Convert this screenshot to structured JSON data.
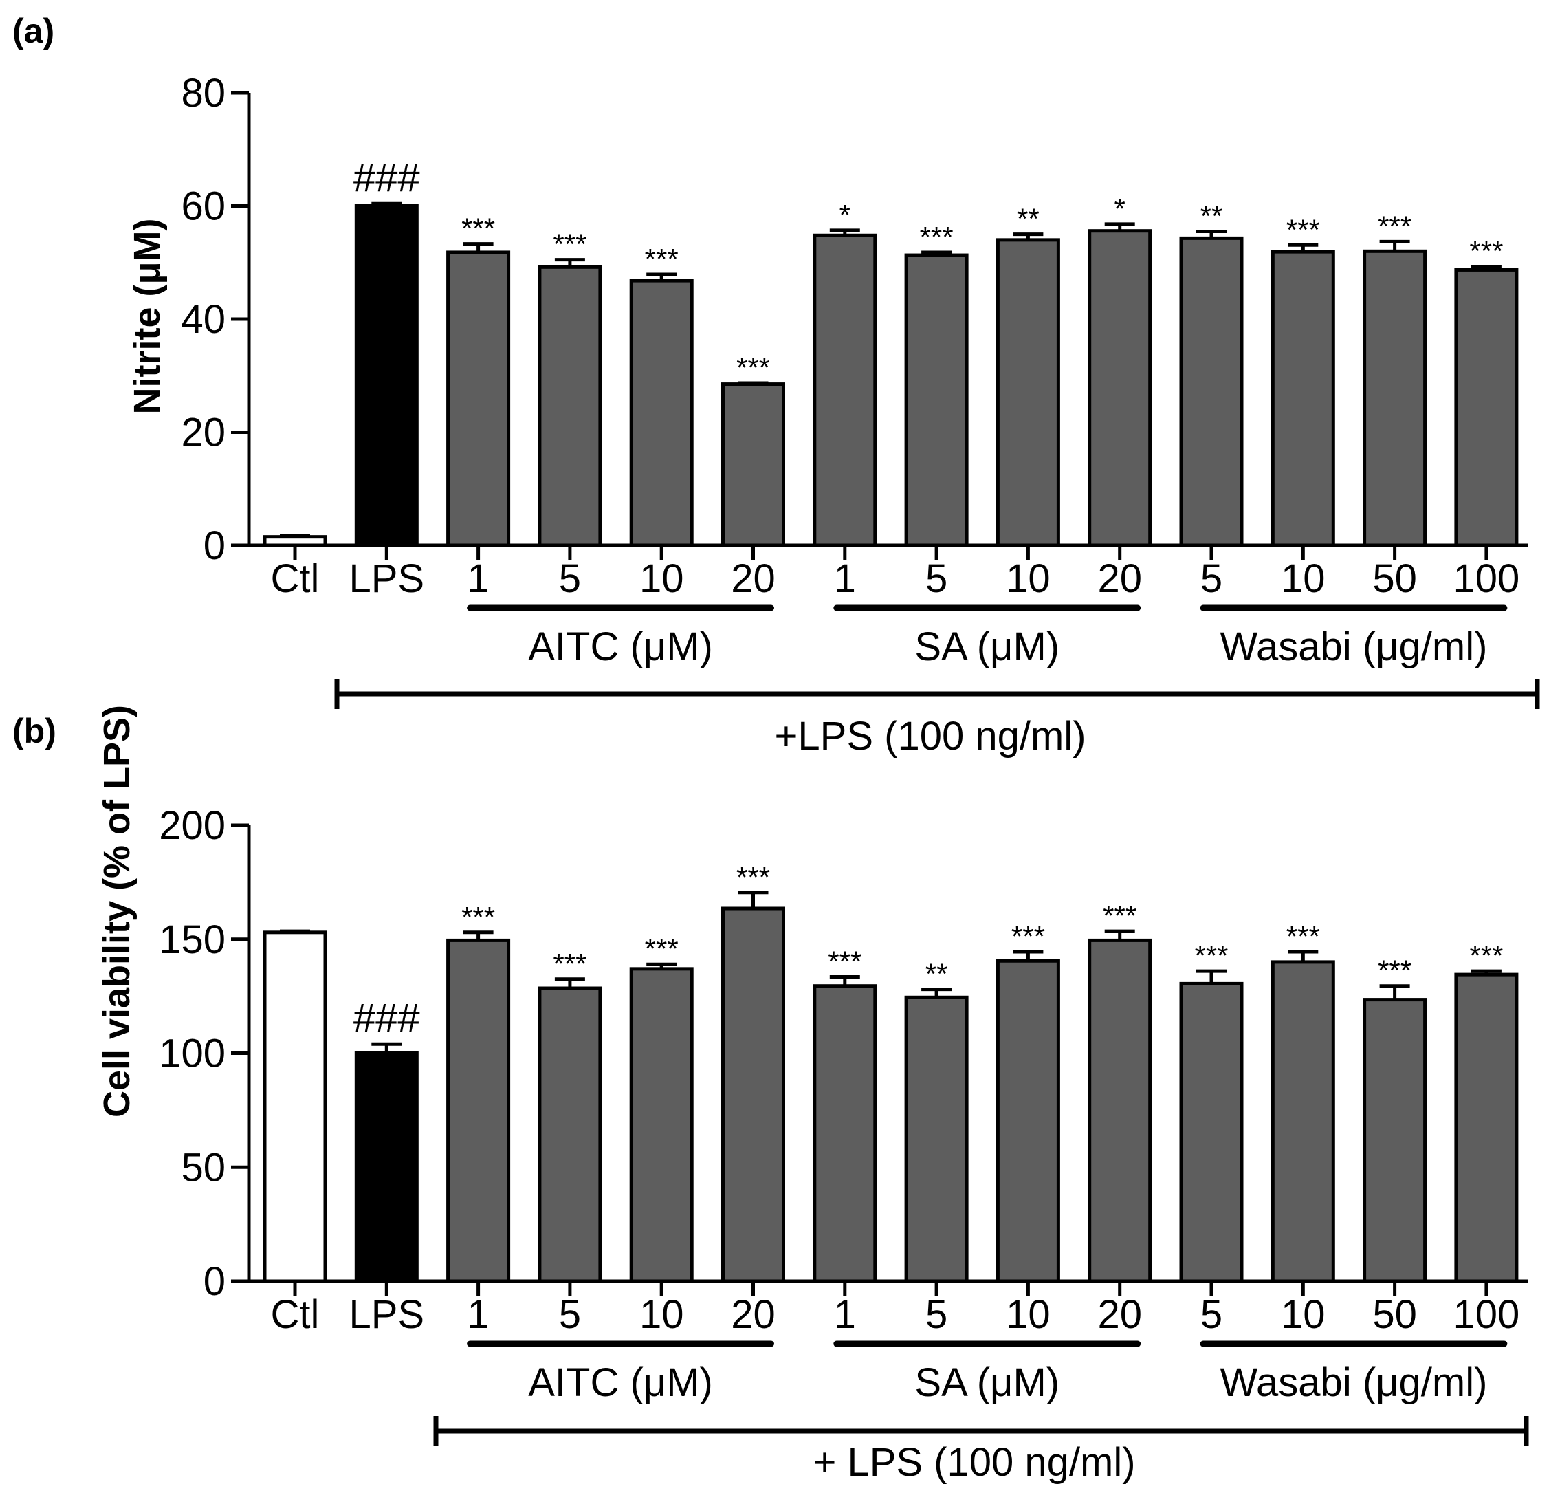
{
  "chart_data": [
    {
      "panel": "(a)",
      "type": "bar",
      "ylabel": "Nitrite (μM)",
      "ylim": [
        0,
        80
      ],
      "yticks": [
        0,
        20,
        40,
        60,
        80
      ],
      "categories": [
        "Ctl",
        "LPS",
        "1",
        "5",
        "10",
        "20",
        "1",
        "5",
        "10",
        "20",
        "5",
        "10",
        "50",
        "100"
      ],
      "values": [
        1.5,
        60,
        51.8,
        49.2,
        46.8,
        28.5,
        54.8,
        51.3,
        54,
        55.6,
        54.3,
        51.9,
        52,
        48.7
      ],
      "errors": [
        0.2,
        0.4,
        1.5,
        1.3,
        1.1,
        0.2,
        0.9,
        0.5,
        1,
        1.2,
        1.2,
        1.2,
        1.7,
        0.6
      ],
      "bar_styles": [
        "white",
        "black",
        "gray",
        "gray",
        "gray",
        "gray",
        "gray",
        "gray",
        "gray",
        "gray",
        "gray",
        "gray",
        "gray",
        "gray"
      ],
      "significance": [
        "",
        "###",
        "***",
        "***",
        "***",
        "***",
        "*",
        "***",
        "**",
        "*",
        "**",
        "***",
        "***",
        "***"
      ],
      "groups": [
        {
          "label": "AITC (μM)",
          "from": 2,
          "to": 5
        },
        {
          "label": "SA (μM)",
          "from": 6,
          "to": 9
        },
        {
          "label": "Wasabi (μg/ml)",
          "from": 10,
          "to": 13
        }
      ],
      "treatment_label": "+LPS (100 ng/ml)",
      "treatment_from": 1,
      "treatment_to": 13,
      "colors": {
        "white": "#ffffff",
        "black": "#000000",
        "gray": "#5e5e5e"
      }
    },
    {
      "panel": "(b)",
      "type": "bar",
      "ylabel": "Cell viability (% of LPS)",
      "ylim": [
        0,
        200
      ],
      "yticks": [
        0,
        50,
        100,
        150,
        200
      ],
      "categories": [
        "Ctl",
        "LPS",
        "1",
        "5",
        "10",
        "20",
        "1",
        "5",
        "10",
        "20",
        "5",
        "10",
        "50",
        "100"
      ],
      "values": [
        153,
        100,
        149.5,
        128.5,
        137,
        163.5,
        129.5,
        124.5,
        140.5,
        149.5,
        130.5,
        140,
        123.5,
        134.5
      ],
      "errors": [
        0.5,
        4,
        3.5,
        4,
        2,
        7,
        4,
        3.5,
        4,
        4,
        5.5,
        4.5,
        6,
        1.5
      ],
      "bar_styles": [
        "white",
        "black",
        "gray",
        "gray",
        "gray",
        "gray",
        "gray",
        "gray",
        "gray",
        "gray",
        "gray",
        "gray",
        "gray",
        "gray"
      ],
      "significance": [
        "",
        "###",
        "***",
        "***",
        "***",
        "***",
        "***",
        "**",
        "***",
        "***",
        "***",
        "***",
        "***",
        "***"
      ],
      "groups": [
        {
          "label": "AITC (μM)",
          "from": 2,
          "to": 5
        },
        {
          "label": "SA (μM)",
          "from": 6,
          "to": 9
        },
        {
          "label": "Wasabi (μg/ml)",
          "from": 10,
          "to": 13
        }
      ],
      "treatment_label": "+ LPS (100 ng/ml)",
      "treatment_from": 2,
      "treatment_to": 13,
      "colors": {
        "white": "#ffffff",
        "black": "#000000",
        "gray": "#5e5e5e"
      }
    }
  ]
}
